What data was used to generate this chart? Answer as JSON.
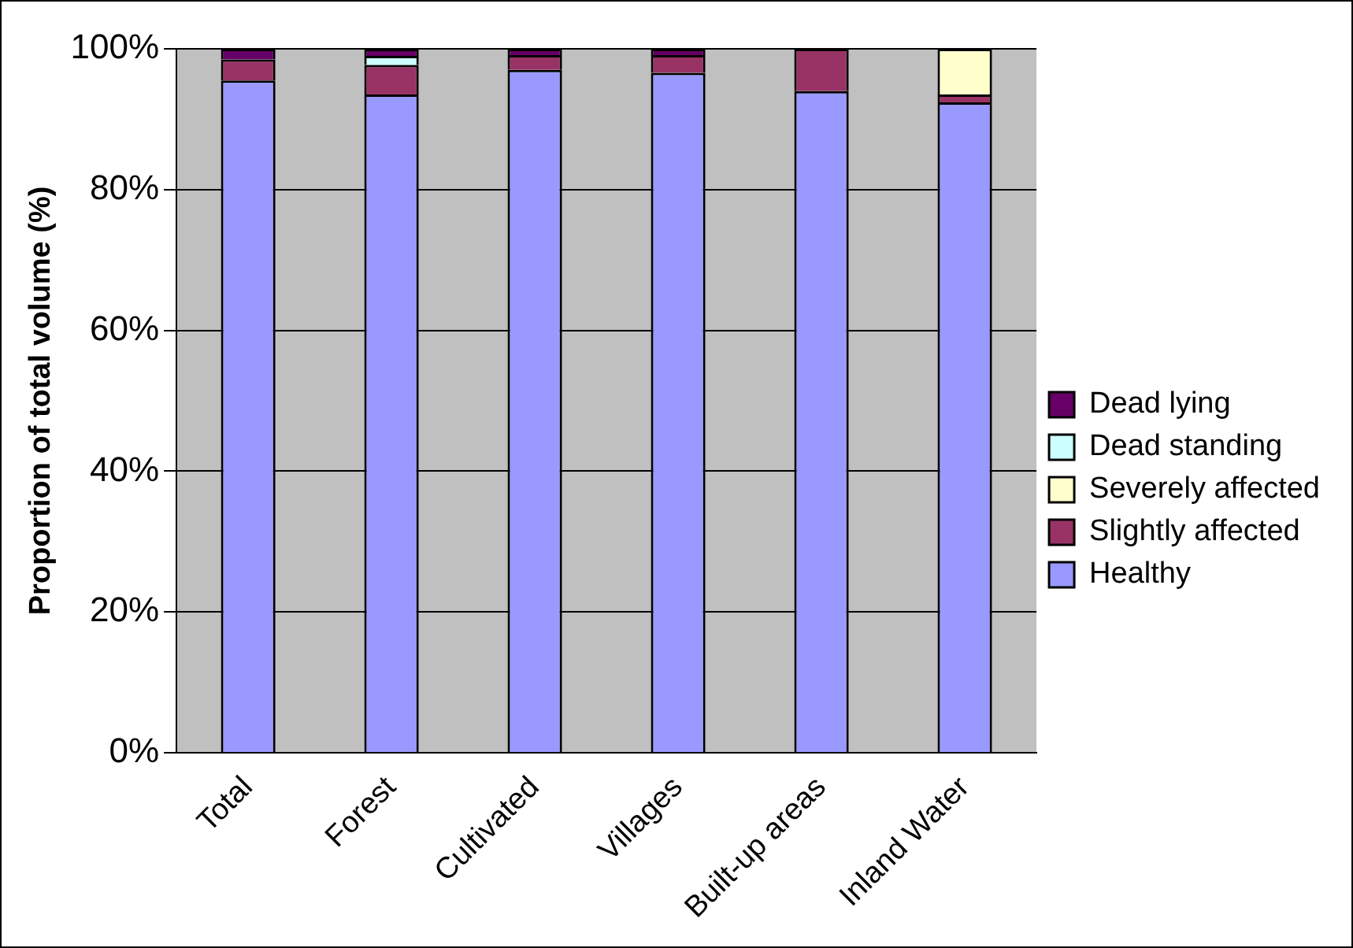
{
  "chart_data": {
    "type": "bar",
    "stacked": true,
    "ylabel": "Proportion of total volume (%)",
    "categories": [
      "Total",
      "Forest",
      "Cultivated",
      "Villages",
      "Built-up areas",
      "Inland Water"
    ],
    "series": [
      {
        "name": "Healthy",
        "color": "#9999ff",
        "values": [
          95.5,
          93.5,
          97.0,
          96.6,
          94.0,
          92.4
        ]
      },
      {
        "name": "Slightly affected",
        "color": "#993366",
        "values": [
          3.0,
          4.2,
          2.1,
          2.5,
          6.0,
          1.1
        ]
      },
      {
        "name": "Severely affected",
        "color": "#ffffcc",
        "values": [
          null,
          0,
          0,
          0,
          0,
          6.5
        ]
      },
      {
        "name": "Dead standing",
        "color": "#ccffff",
        "values": [
          null,
          1.3,
          0,
          0,
          0,
          0
        ]
      },
      {
        "name": "Dead lying",
        "color": "#660066",
        "values": [
          1.5,
          1.0,
          0.9,
          0.9,
          0,
          0
        ]
      }
    ],
    "ylim": [
      0,
      100
    ],
    "yticks": [
      {
        "value": 0,
        "label": "0%"
      },
      {
        "value": 20,
        "label": "20%"
      },
      {
        "value": 40,
        "label": "40%"
      },
      {
        "value": 60,
        "label": "60%"
      },
      {
        "value": 80,
        "label": "80%"
      },
      {
        "value": 100,
        "label": "100%"
      }
    ],
    "grid": "y",
    "legend": "right"
  }
}
